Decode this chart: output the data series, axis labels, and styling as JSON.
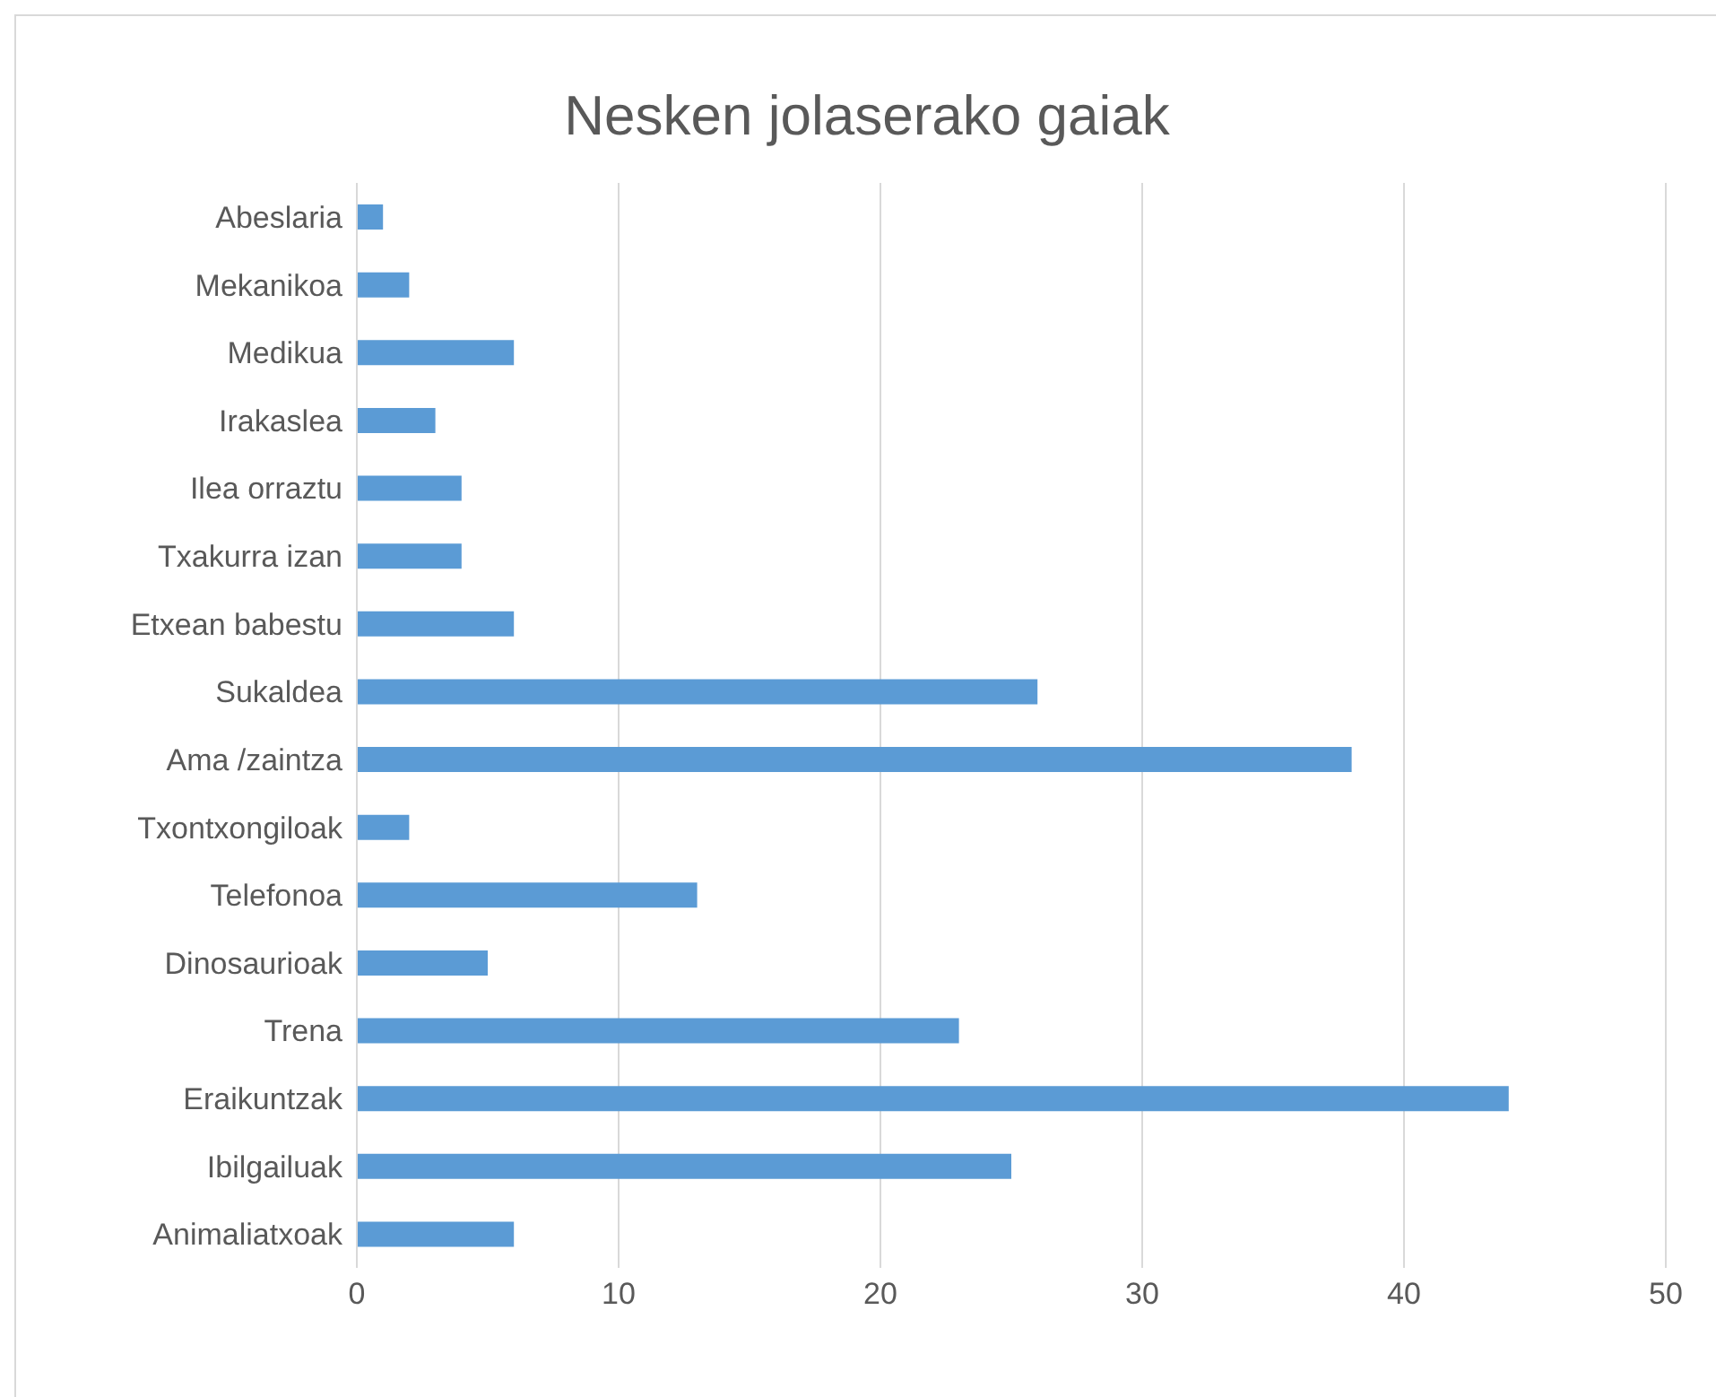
{
  "chart_data": {
    "type": "bar",
    "orientation": "horizontal",
    "title": "Nesken jolaserako gaiak",
    "categories": [
      "Abeslaria",
      "Mekanikoa",
      "Medikua",
      "Irakaslea",
      "Ilea orraztu",
      "Txakurra izan",
      "Etxean babestu",
      "Sukaldea",
      "Ama /zaintza",
      "Txontxongiloak",
      "Telefonoa",
      "Dinosaurioak",
      "Trena",
      "Eraikuntzak",
      "Ibilgailuak",
      "Animaliatxoak"
    ],
    "values": [
      1,
      2,
      6,
      3,
      4,
      4,
      6,
      26,
      38,
      2,
      13,
      5,
      23,
      44,
      25,
      6
    ],
    "color": "#5b9bd5",
    "xlim": [
      0,
      50
    ],
    "xticks": [
      0,
      10,
      20,
      30,
      40,
      50
    ],
    "grid": "x",
    "legend": false
  }
}
